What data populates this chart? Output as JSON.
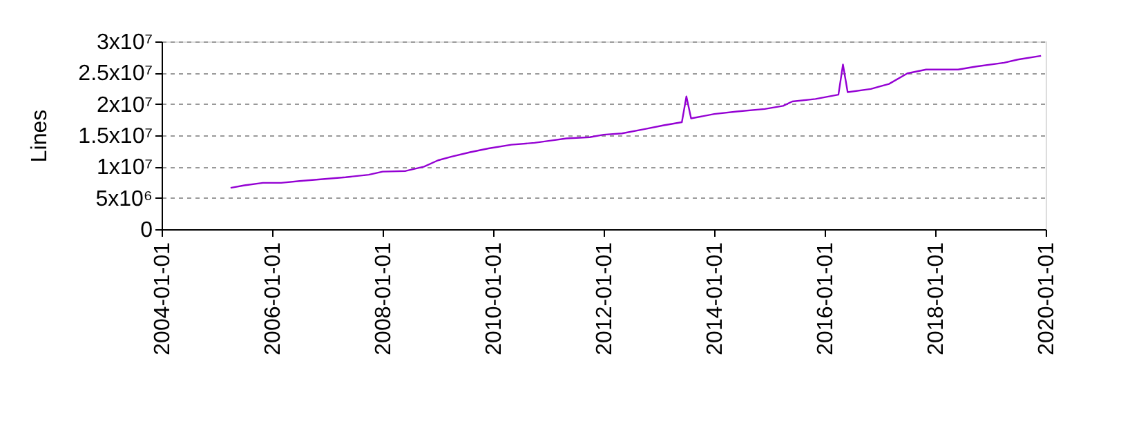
{
  "chart_data": {
    "type": "line",
    "ylabel": "Lines",
    "x": [
      "2005-04",
      "2005-07",
      "2005-11",
      "2006-03",
      "2006-07",
      "2006-12",
      "2007-05",
      "2007-10",
      "2008-01",
      "2008-06",
      "2008-10",
      "2009-01",
      "2009-04",
      "2009-08",
      "2009-12",
      "2010-05",
      "2010-10",
      "2011-01",
      "2011-05",
      "2011-10",
      "2012-01",
      "2012-05",
      "2012-10",
      "2013-02",
      "2013-06",
      "2013-07",
      "2013-08",
      "2014-01",
      "2014-06",
      "2014-12",
      "2015-04",
      "2015-06",
      "2015-11",
      "2016-04",
      "2016-05",
      "2016-06",
      "2016-11",
      "2017-03",
      "2017-07",
      "2017-11",
      "2018-06",
      "2018-10",
      "2019-04",
      "2019-07",
      "2019-12"
    ],
    "series": [
      {
        "color": "#9400d3",
        "values": [
          6600000,
          7000000,
          7400000,
          7400000,
          7700000,
          8000000,
          8300000,
          8700000,
          9200000,
          9300000,
          10000000,
          11000000,
          11600000,
          12300000,
          12900000,
          13500000,
          13800000,
          14100000,
          14500000,
          14700000,
          15100000,
          15300000,
          16000000,
          16600000,
          17100000,
          21200000,
          17700000,
          18400000,
          18800000,
          19200000,
          19700000,
          20400000,
          20800000,
          21500000,
          26300000,
          21900000,
          22400000,
          23200000,
          24900000,
          25500000,
          25500000,
          26000000,
          26600000,
          27100000,
          27700000
        ]
      }
    ],
    "xlim": [
      "2004-01-01",
      "2020-01-01"
    ],
    "xticks": [
      "2004-01-01",
      "2006-01-01",
      "2008-01-01",
      "2010-01-01",
      "2012-01-01",
      "2014-01-01",
      "2016-01-01",
      "2018-01-01",
      "2020-01-01"
    ],
    "ylim": [
      0,
      30000000
    ],
    "yticks": [
      0,
      {
        "value": 5000000,
        "label": "5x10⁶"
      },
      {
        "value": 10000000,
        "label": "1x10⁷"
      },
      {
        "value": 15000000,
        "label": "1.5x10⁷"
      },
      {
        "value": 20000000,
        "label": "2x10⁷"
      },
      {
        "value": 25000000,
        "label": "2.5x10⁷"
      },
      {
        "value": 30000000,
        "label": "3x10⁷"
      }
    ],
    "grid": "y",
    "line_style": "solid",
    "marker": "none"
  }
}
